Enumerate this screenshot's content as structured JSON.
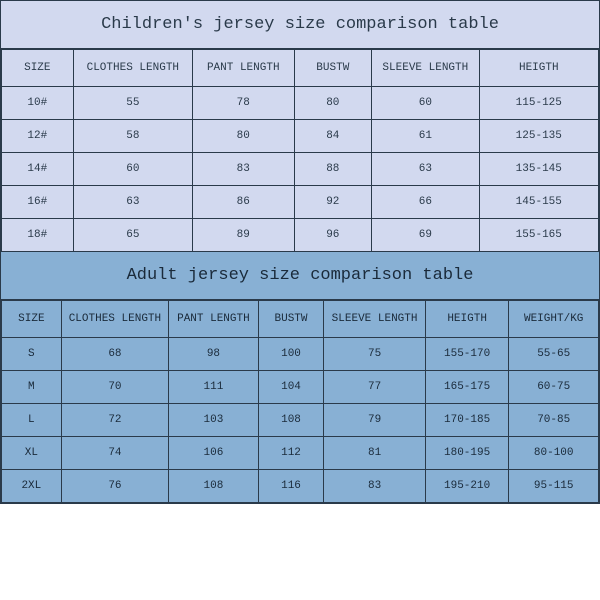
{
  "children": {
    "title": "Children's jersey size comparison table",
    "title_bg": "#d2d9ef",
    "cell_bg": "#d2d9ef",
    "border_color": "#2a3a4a",
    "text_color": "#2a3a4a",
    "title_fontsize": 17,
    "cell_fontsize": 11,
    "columns": [
      "SIZE",
      "CLOTHES LENGTH",
      "PANT LENGTH",
      "BUSTW",
      "SLEEVE LENGTH",
      "HEIGTH"
    ],
    "col_widths_pct": [
      12,
      20,
      17,
      13,
      18,
      20
    ],
    "rows": [
      [
        "10#",
        "55",
        "78",
        "80",
        "60",
        "115-125"
      ],
      [
        "12#",
        "58",
        "80",
        "84",
        "61",
        "125-135"
      ],
      [
        "14#",
        "60",
        "83",
        "88",
        "63",
        "135-145"
      ],
      [
        "16#",
        "63",
        "86",
        "92",
        "66",
        "145-155"
      ],
      [
        "18#",
        "65",
        "89",
        "96",
        "69",
        "155-165"
      ]
    ]
  },
  "adult": {
    "title": "Adult jersey size comparison table",
    "title_bg": "#88b0d4",
    "cell_bg": "#88b0d4",
    "border_color": "#2a3a4a",
    "text_color": "#1a2a3a",
    "title_fontsize": 17,
    "cell_fontsize": 11,
    "columns": [
      "SIZE",
      "CLOTHES LENGTH",
      "PANT LENGTH",
      "BUSTW",
      "SLEEVE LENGTH",
      "HEIGTH",
      "WEIGHT/KG"
    ],
    "col_widths_pct": [
      10,
      18,
      15,
      11,
      17,
      14,
      15
    ],
    "rows": [
      [
        "S",
        "68",
        "98",
        "100",
        "75",
        "155-170",
        "55-65"
      ],
      [
        "M",
        "70",
        "111",
        "104",
        "77",
        "165-175",
        "60-75"
      ],
      [
        "L",
        "72",
        "103",
        "108",
        "79",
        "170-185",
        "70-85"
      ],
      [
        "XL",
        "74",
        "106",
        "112",
        "81",
        "180-195",
        "80-100"
      ],
      [
        "2XL",
        "76",
        "108",
        "116",
        "83",
        "195-210",
        "95-115"
      ]
    ]
  }
}
